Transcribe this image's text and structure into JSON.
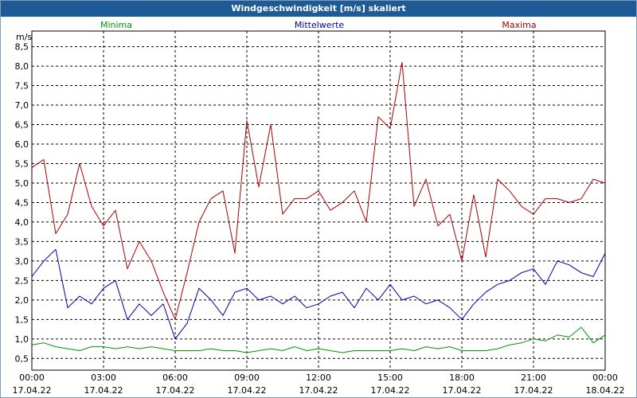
{
  "title": "Windgeschwindigkeit [m/s] skaliert",
  "colors": {
    "minima": "#009900",
    "mittel": "#0000aa",
    "maxima": "#aa0000",
    "title_bg": "#1e5b96"
  },
  "chart_data": {
    "type": "line",
    "title": "Windgeschwindigkeit [m/s] skaliert",
    "ylabel": "m/s",
    "ylim": [
      0.2,
      8.9
    ],
    "xlim": [
      0,
      24
    ],
    "grid": true,
    "y_ticks": [
      {
        "value": 0.5,
        "label": "0,5"
      },
      {
        "value": 1.0,
        "label": "1,0"
      },
      {
        "value": 1.5,
        "label": "1,5"
      },
      {
        "value": 2.0,
        "label": "2,0"
      },
      {
        "value": 2.5,
        "label": "2,5"
      },
      {
        "value": 3.0,
        "label": "3,0"
      },
      {
        "value": 3.5,
        "label": "3,5"
      },
      {
        "value": 4.0,
        "label": "4,0"
      },
      {
        "value": 4.5,
        "label": "4,5"
      },
      {
        "value": 5.0,
        "label": "5,0"
      },
      {
        "value": 5.5,
        "label": "5,5"
      },
      {
        "value": 6.0,
        "label": "6,0"
      },
      {
        "value": 6.5,
        "label": "6,5"
      },
      {
        "value": 7.0,
        "label": "7,0"
      },
      {
        "value": 7.5,
        "label": "7,5"
      },
      {
        "value": 8.0,
        "label": "8,0"
      },
      {
        "value": 8.5,
        "label": "8,5"
      }
    ],
    "x_ticks": [
      {
        "value": 0,
        "time": "00:00",
        "date": "17.04.22"
      },
      {
        "value": 3,
        "time": "03:00",
        "date": "17.04.22"
      },
      {
        "value": 6,
        "time": "06:00",
        "date": "17.04.22"
      },
      {
        "value": 9,
        "time": "09:00",
        "date": "17.04.22"
      },
      {
        "value": 12,
        "time": "12:00",
        "date": "17.04.22"
      },
      {
        "value": 15,
        "time": "15:00",
        "date": "17.04.22"
      },
      {
        "value": 18,
        "time": "18:00",
        "date": "17.04.22"
      },
      {
        "value": 21,
        "time": "21:00",
        "date": "17.04.22"
      },
      {
        "value": 24,
        "time": "00:00",
        "date": "18.04.22"
      }
    ],
    "series": [
      {
        "name": "Minima",
        "key": "minima",
        "x": [
          0,
          0.5,
          1.0,
          1.5,
          2.0,
          2.5,
          3.0,
          3.5,
          4.0,
          4.5,
          5.0,
          5.5,
          6.0,
          6.5,
          7.0,
          7.5,
          8.0,
          8.5,
          9.0,
          9.5,
          10.0,
          10.5,
          11.0,
          11.5,
          12.0,
          12.5,
          13.0,
          13.5,
          14.0,
          14.5,
          15.0,
          15.5,
          16.0,
          16.5,
          17.0,
          17.5,
          18.0,
          18.5,
          19.0,
          19.5,
          20.0,
          20.5,
          21.0,
          21.5,
          22.0,
          22.5,
          23.0,
          23.5,
          24.0
        ],
        "values": [
          0.85,
          0.9,
          0.8,
          0.75,
          0.7,
          0.8,
          0.8,
          0.75,
          0.8,
          0.75,
          0.8,
          0.75,
          0.7,
          0.7,
          0.7,
          0.75,
          0.7,
          0.7,
          0.65,
          0.7,
          0.75,
          0.7,
          0.8,
          0.7,
          0.75,
          0.7,
          0.65,
          0.7,
          0.7,
          0.7,
          0.7,
          0.75,
          0.7,
          0.8,
          0.75,
          0.8,
          0.7,
          0.7,
          0.7,
          0.75,
          0.85,
          0.9,
          1.0,
          0.95,
          1.1,
          1.05,
          1.3,
          0.9,
          1.1
        ]
      },
      {
        "name": "Mittelwerte",
        "key": "mittel",
        "x": [
          0,
          0.5,
          1.0,
          1.5,
          2.0,
          2.5,
          3.0,
          3.5,
          4.0,
          4.5,
          5.0,
          5.5,
          6.0,
          6.5,
          7.0,
          7.5,
          8.0,
          8.5,
          9.0,
          9.5,
          10.0,
          10.5,
          11.0,
          11.5,
          12.0,
          12.5,
          13.0,
          13.5,
          14.0,
          14.5,
          15.0,
          15.5,
          16.0,
          16.5,
          17.0,
          17.5,
          18.0,
          18.5,
          19.0,
          19.5,
          20.0,
          20.5,
          21.0,
          21.5,
          22.0,
          22.5,
          23.0,
          23.5,
          24.0
        ],
        "values": [
          2.6,
          3.0,
          3.3,
          1.8,
          2.1,
          1.9,
          2.3,
          2.5,
          1.5,
          1.9,
          1.6,
          1.9,
          1.0,
          1.4,
          2.3,
          2.0,
          1.6,
          2.2,
          2.3,
          2.0,
          2.1,
          1.9,
          2.1,
          1.8,
          1.9,
          2.1,
          2.2,
          1.8,
          2.3,
          2.0,
          2.4,
          2.0,
          2.1,
          1.9,
          2.0,
          1.8,
          1.5,
          1.9,
          2.2,
          2.4,
          2.5,
          2.7,
          2.8,
          2.4,
          3.0,
          2.9,
          2.7,
          2.6,
          3.2
        ]
      },
      {
        "name": "Maxima",
        "key": "maxima",
        "x": [
          0,
          0.5,
          1.0,
          1.5,
          2.0,
          2.5,
          3.0,
          3.5,
          4.0,
          4.5,
          5.0,
          5.5,
          6.0,
          6.5,
          7.0,
          7.5,
          8.0,
          8.5,
          9.0,
          9.5,
          10.0,
          10.5,
          11.0,
          11.5,
          12.0,
          12.5,
          13.0,
          13.5,
          14.0,
          14.5,
          15.0,
          15.5,
          16.0,
          16.5,
          17.0,
          17.5,
          18.0,
          18.5,
          19.0,
          19.5,
          20.0,
          20.5,
          21.0,
          21.5,
          22.0,
          22.5,
          23.0,
          23.5,
          24.0
        ],
        "values": [
          5.4,
          5.6,
          3.7,
          4.2,
          5.5,
          4.4,
          3.9,
          4.3,
          2.8,
          3.5,
          3.0,
          2.2,
          1.5,
          2.7,
          4.0,
          4.6,
          4.8,
          3.2,
          6.6,
          4.9,
          6.5,
          4.2,
          4.6,
          4.6,
          4.8,
          4.3,
          4.5,
          4.8,
          4.0,
          6.7,
          6.4,
          8.1,
          4.4,
          5.1,
          3.9,
          4.2,
          3.0,
          4.7,
          3.1,
          5.1,
          4.8,
          4.4,
          4.2,
          4.6,
          4.6,
          4.5,
          4.6,
          5.1,
          5.0
        ]
      }
    ]
  }
}
